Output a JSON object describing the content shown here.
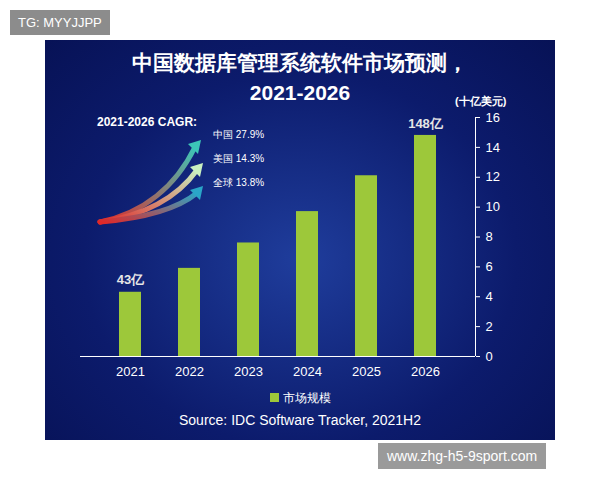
{
  "chart_data": {
    "type": "bar",
    "title": "中国数据库管理系统软件市场预测，",
    "subtitle": "2021-2026",
    "y_label": "(十亿美元)",
    "categories": [
      "2021",
      "2022",
      "2023",
      "2024",
      "2025",
      "2026"
    ],
    "series": [
      {
        "name": "市场规模",
        "color": "#9dc83a",
        "values": [
          4.3,
          5.9,
          7.6,
          9.7,
          12.1,
          14.8
        ],
        "value_labels": [
          "43亿",
          null,
          null,
          null,
          null,
          "148亿"
        ]
      }
    ],
    "ylim": [
      0,
      16
    ],
    "yticks": [
      0,
      2,
      4,
      6,
      8,
      10,
      12,
      14,
      16
    ],
    "data_labels": true,
    "legend": "bottom",
    "grid": false,
    "annotations": {
      "title": "2021-2026 CAGR:",
      "items": [
        "中国 27.9%",
        "美国 14.3%",
        "全球 13.8%"
      ]
    },
    "source": "Source: IDC Software Tracker, 2021H2",
    "watermarks": [
      "TG: MYYJJPP",
      "www.zhg-h5-9sport.com"
    ]
  }
}
